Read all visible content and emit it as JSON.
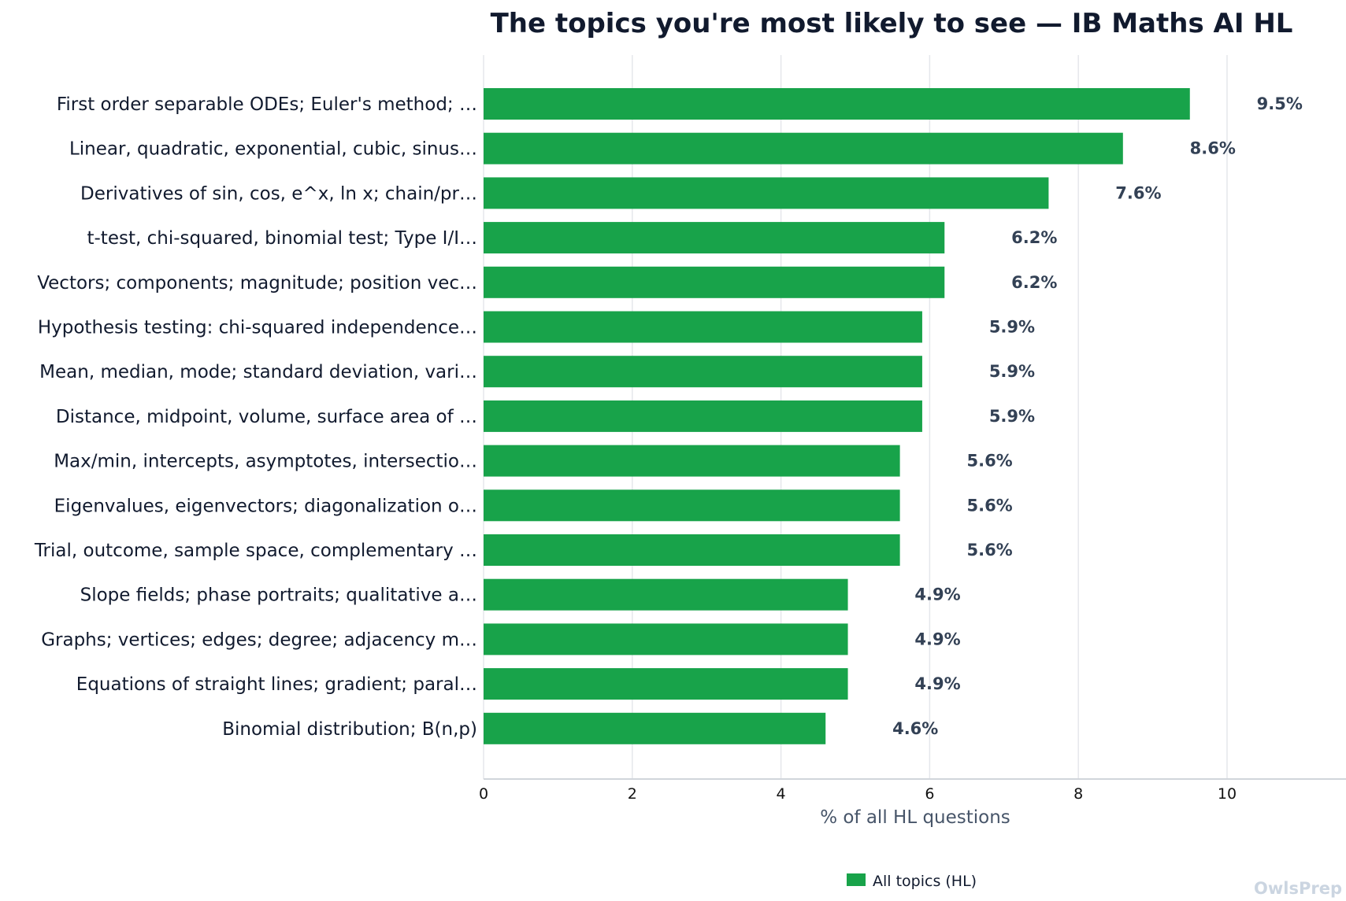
{
  "chart_data": {
    "type": "bar",
    "orientation": "horizontal",
    "title": "The topics you're most likely to see — IB Maths AI HL",
    "xlabel": "% of all HL questions",
    "ylabel": "",
    "xlim": [
      0,
      11.6
    ],
    "xticks": [
      0,
      2,
      4,
      6,
      8,
      10
    ],
    "grid": "vertical",
    "legend_position": "bottom-center",
    "colors": {
      "bar": "#18a34a",
      "grid": "#e5e7eb",
      "axis": "#d1d5db"
    },
    "categories": [
      "First order separable ODEs; Euler's method; …",
      "Linear, quadratic, exponential, cubic, sinus…",
      "Derivatives of sin, cos, e^x, ln x; chain/pr…",
      "t-test, chi-squared, binomial test; Type I/I…",
      "Vectors; components; magnitude; position vec…",
      "Hypothesis testing: chi-squared independence…",
      "Mean, median, mode; standard deviation, vari…",
      "Distance, midpoint, volume, surface area of …",
      "Max/min, intercepts, asymptotes, intersectio…",
      "Eigenvalues, eigenvectors; diagonalization o…",
      "Trial, outcome, sample space, complementary …",
      "Slope fields; phase portraits; qualitative a…",
      "Graphs; vertices; edges; degree; adjacency m…",
      "Equations of straight lines; gradient; paral…",
      "Binomial distribution; B(n,p)"
    ],
    "series": [
      {
        "name": "All topics (HL)",
        "values": [
          9.5,
          8.6,
          7.6,
          6.2,
          6.2,
          5.9,
          5.9,
          5.9,
          5.6,
          5.6,
          5.6,
          4.9,
          4.9,
          4.9,
          4.6
        ],
        "labels": [
          "9.5%",
          "8.6%",
          "7.6%",
          "6.2%",
          "6.2%",
          "5.9%",
          "5.9%",
          "5.9%",
          "5.6%",
          "5.6%",
          "5.6%",
          "4.9%",
          "4.9%",
          "4.9%",
          "4.6%"
        ]
      }
    ]
  },
  "watermark": "OwlsPrep"
}
